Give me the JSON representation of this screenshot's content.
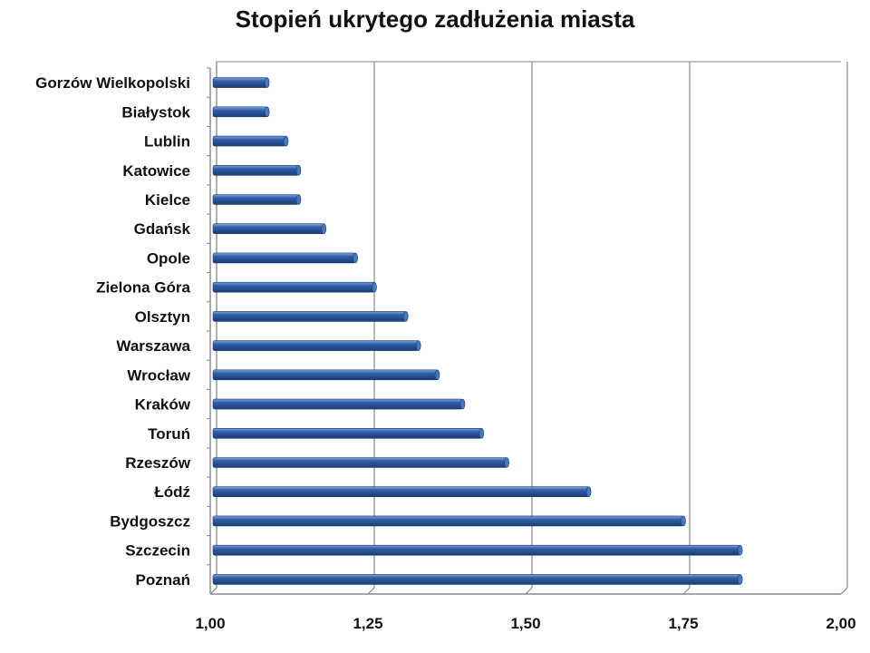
{
  "chart_data": {
    "type": "bar",
    "orientation": "horizontal",
    "title": "Stopień ukrytego zadłużenia miasta",
    "xlabel": "",
    "ylabel": "",
    "xlim": [
      1.0,
      2.0
    ],
    "xticks": [
      1.0,
      1.25,
      1.5,
      1.75,
      2.0
    ],
    "xtick_labels": [
      "1,00",
      "1,25",
      "1,50",
      "1,75",
      "2,00"
    ],
    "grid": "vertical",
    "legend": "none",
    "bar_color": "#2f5fa8",
    "categories": [
      "Gorzów Wielkopolski",
      "Białystok",
      "Lublin",
      "Katowice",
      "Kielce",
      "Gdańsk",
      "Opole",
      "Zielona Góra",
      "Olsztyn",
      "Warszawa",
      "Wrocław",
      "Kraków",
      "Toruń",
      "Rzeszów",
      "Łódź",
      "Bydgoszcz",
      "Szczecin",
      "Poznań"
    ],
    "values": [
      1.09,
      1.09,
      1.12,
      1.14,
      1.14,
      1.18,
      1.23,
      1.26,
      1.31,
      1.33,
      1.36,
      1.4,
      1.43,
      1.47,
      1.6,
      1.75,
      1.84,
      1.84
    ]
  }
}
